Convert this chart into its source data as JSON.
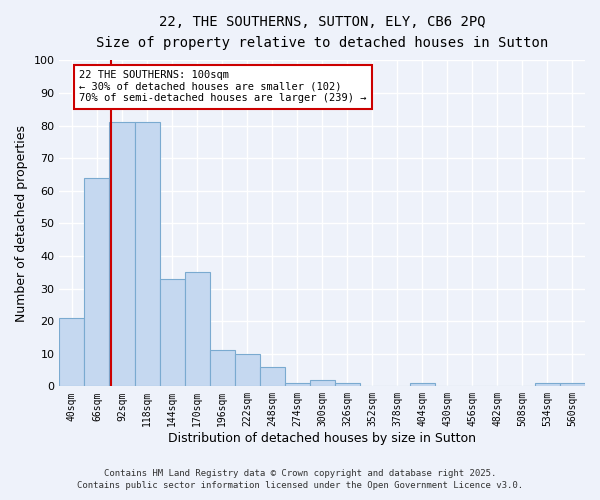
{
  "title": "22, THE SOUTHERNS, SUTTON, ELY, CB6 2PQ",
  "subtitle": "Size of property relative to detached houses in Sutton",
  "xlabel": "Distribution of detached houses by size in Sutton",
  "ylabel": "Number of detached properties",
  "bar_labels": [
    "40sqm",
    "66sqm",
    "92sqm",
    "118sqm",
    "144sqm",
    "170sqm",
    "196sqm",
    "222sqm",
    "248sqm",
    "274sqm",
    "300sqm",
    "326sqm",
    "352sqm",
    "378sqm",
    "404sqm",
    "430sqm",
    "456sqm",
    "482sqm",
    "508sqm",
    "534sqm",
    "560sqm"
  ],
  "bar_values": [
    21,
    64,
    81,
    81,
    33,
    35,
    11,
    10,
    6,
    1,
    2,
    1,
    0,
    0,
    1,
    0,
    0,
    0,
    0,
    1,
    1
  ],
  "bar_color": "#c5d8f0",
  "bar_edge_color": "#7aaad0",
  "vline_color": "#cc0000",
  "vline_pos": 1.58,
  "ylim": [
    0,
    100
  ],
  "yticks": [
    0,
    10,
    20,
    30,
    40,
    50,
    60,
    70,
    80,
    90,
    100
  ],
  "annotation_title": "22 THE SOUTHERNS: 100sqm",
  "annotation_line1": "← 30% of detached houses are smaller (102)",
  "annotation_line2": "70% of semi-detached houses are larger (239) →",
  "annotation_box_color": "#ffffff",
  "annotation_box_edge": "#cc0000",
  "background_color": "#eef2fa",
  "grid_color": "#ffffff",
  "footer1": "Contains HM Land Registry data © Crown copyright and database right 2025.",
  "footer2": "Contains public sector information licensed under the Open Government Licence v3.0."
}
